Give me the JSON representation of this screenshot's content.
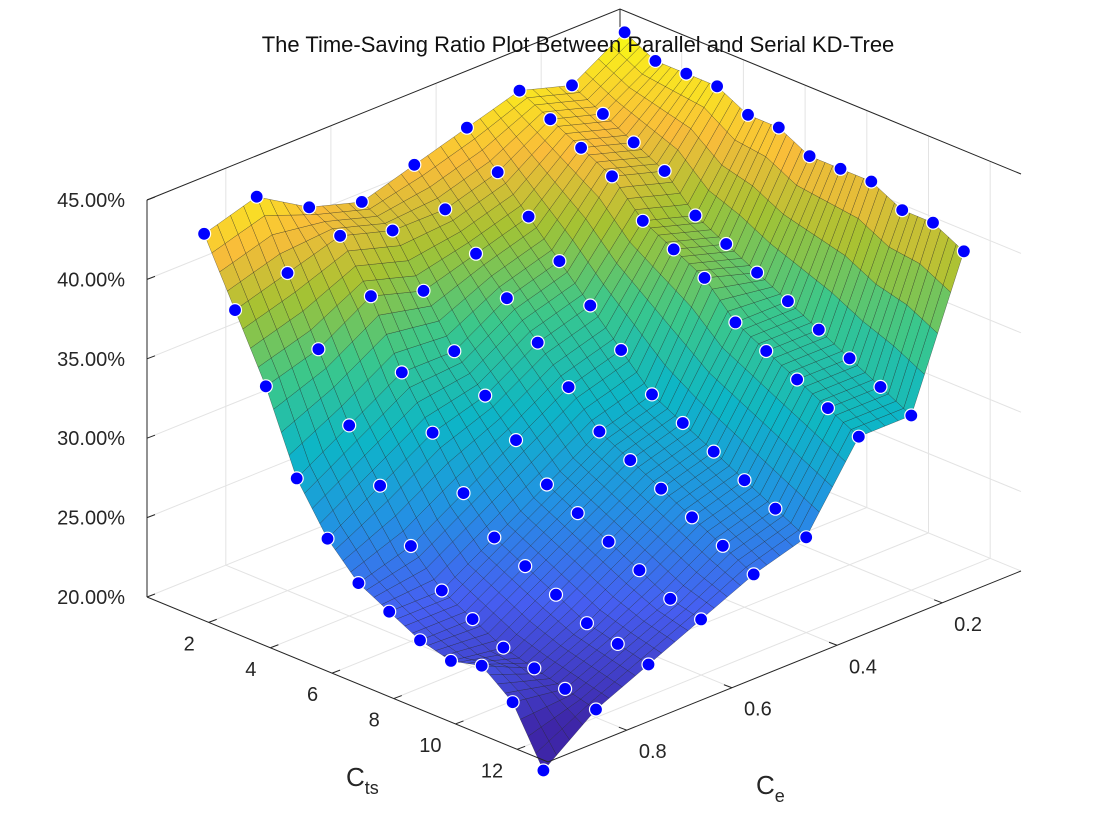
{
  "chart_data": {
    "type": "surface",
    "title": "The Time-Saving Ratio Plot Between Parallel and Serial KD-Tree",
    "x_axis": {
      "label_main": "C",
      "label_sub": "ts",
      "range": [
        0,
        13
      ],
      "ticks": [
        2,
        4,
        6,
        8,
        10,
        12
      ],
      "tick_labels": [
        "2",
        "4",
        "6",
        "8",
        "10",
        "12"
      ]
    },
    "y_axis": {
      "label_main": "C",
      "label_sub": "e",
      "range": [
        0.05,
        0.95
      ],
      "ticks": [
        0.2,
        0.4,
        0.6,
        0.8
      ],
      "tick_labels": [
        "0.2",
        "0.4",
        "0.6",
        "0.8"
      ]
    },
    "z_axis": {
      "label": "",
      "range": [
        0.2,
        0.45
      ],
      "ticks": [
        0.2,
        0.25,
        0.3,
        0.35,
        0.4,
        0.45
      ],
      "tick_labels": [
        "20.00%",
        "25.00%",
        "30.00%",
        "35.00%",
        "40.00%",
        "45.00%"
      ]
    },
    "grid": true,
    "box": true,
    "colormap": "parula",
    "marker_color": "#0000ff",
    "ts_values": [
      1,
      2,
      3,
      4,
      5,
      6,
      7,
      8,
      9,
      10,
      11,
      12
    ],
    "e_values": [
      0.1,
      0.2,
      0.3,
      0.4,
      0.5,
      0.6,
      0.7,
      0.8,
      0.9
    ],
    "z_values": [
      [
        0.45,
        0.43,
        0.44,
        0.43,
        0.42,
        0.41,
        0.42,
        0.44,
        0.43
      ],
      [
        0.44,
        0.42,
        0.43,
        0.41,
        0.4,
        0.4,
        0.41,
        0.4,
        0.39
      ],
      [
        0.44,
        0.41,
        0.42,
        0.39,
        0.38,
        0.37,
        0.38,
        0.36,
        0.35
      ],
      [
        0.44,
        0.4,
        0.41,
        0.37,
        0.36,
        0.34,
        0.34,
        0.32,
        0.3
      ],
      [
        0.43,
        0.38,
        0.39,
        0.35,
        0.34,
        0.32,
        0.31,
        0.29,
        0.27
      ],
      [
        0.43,
        0.37,
        0.38,
        0.33,
        0.32,
        0.3,
        0.28,
        0.26,
        0.25
      ],
      [
        0.42,
        0.36,
        0.37,
        0.31,
        0.3,
        0.28,
        0.26,
        0.24,
        0.24
      ],
      [
        0.42,
        0.35,
        0.35,
        0.3,
        0.29,
        0.27,
        0.25,
        0.23,
        0.23
      ],
      [
        0.42,
        0.34,
        0.34,
        0.29,
        0.28,
        0.26,
        0.24,
        0.22,
        0.225
      ],
      [
        0.41,
        0.33,
        0.33,
        0.28,
        0.27,
        0.25,
        0.23,
        0.215,
        0.23
      ],
      [
        0.41,
        0.32,
        0.32,
        0.27,
        0.26,
        0.24,
        0.225,
        0.21,
        0.215
      ],
      [
        0.4,
        0.31,
        0.31,
        0.26,
        0.25,
        0.235,
        0.22,
        0.205,
        0.18
      ]
    ]
  }
}
